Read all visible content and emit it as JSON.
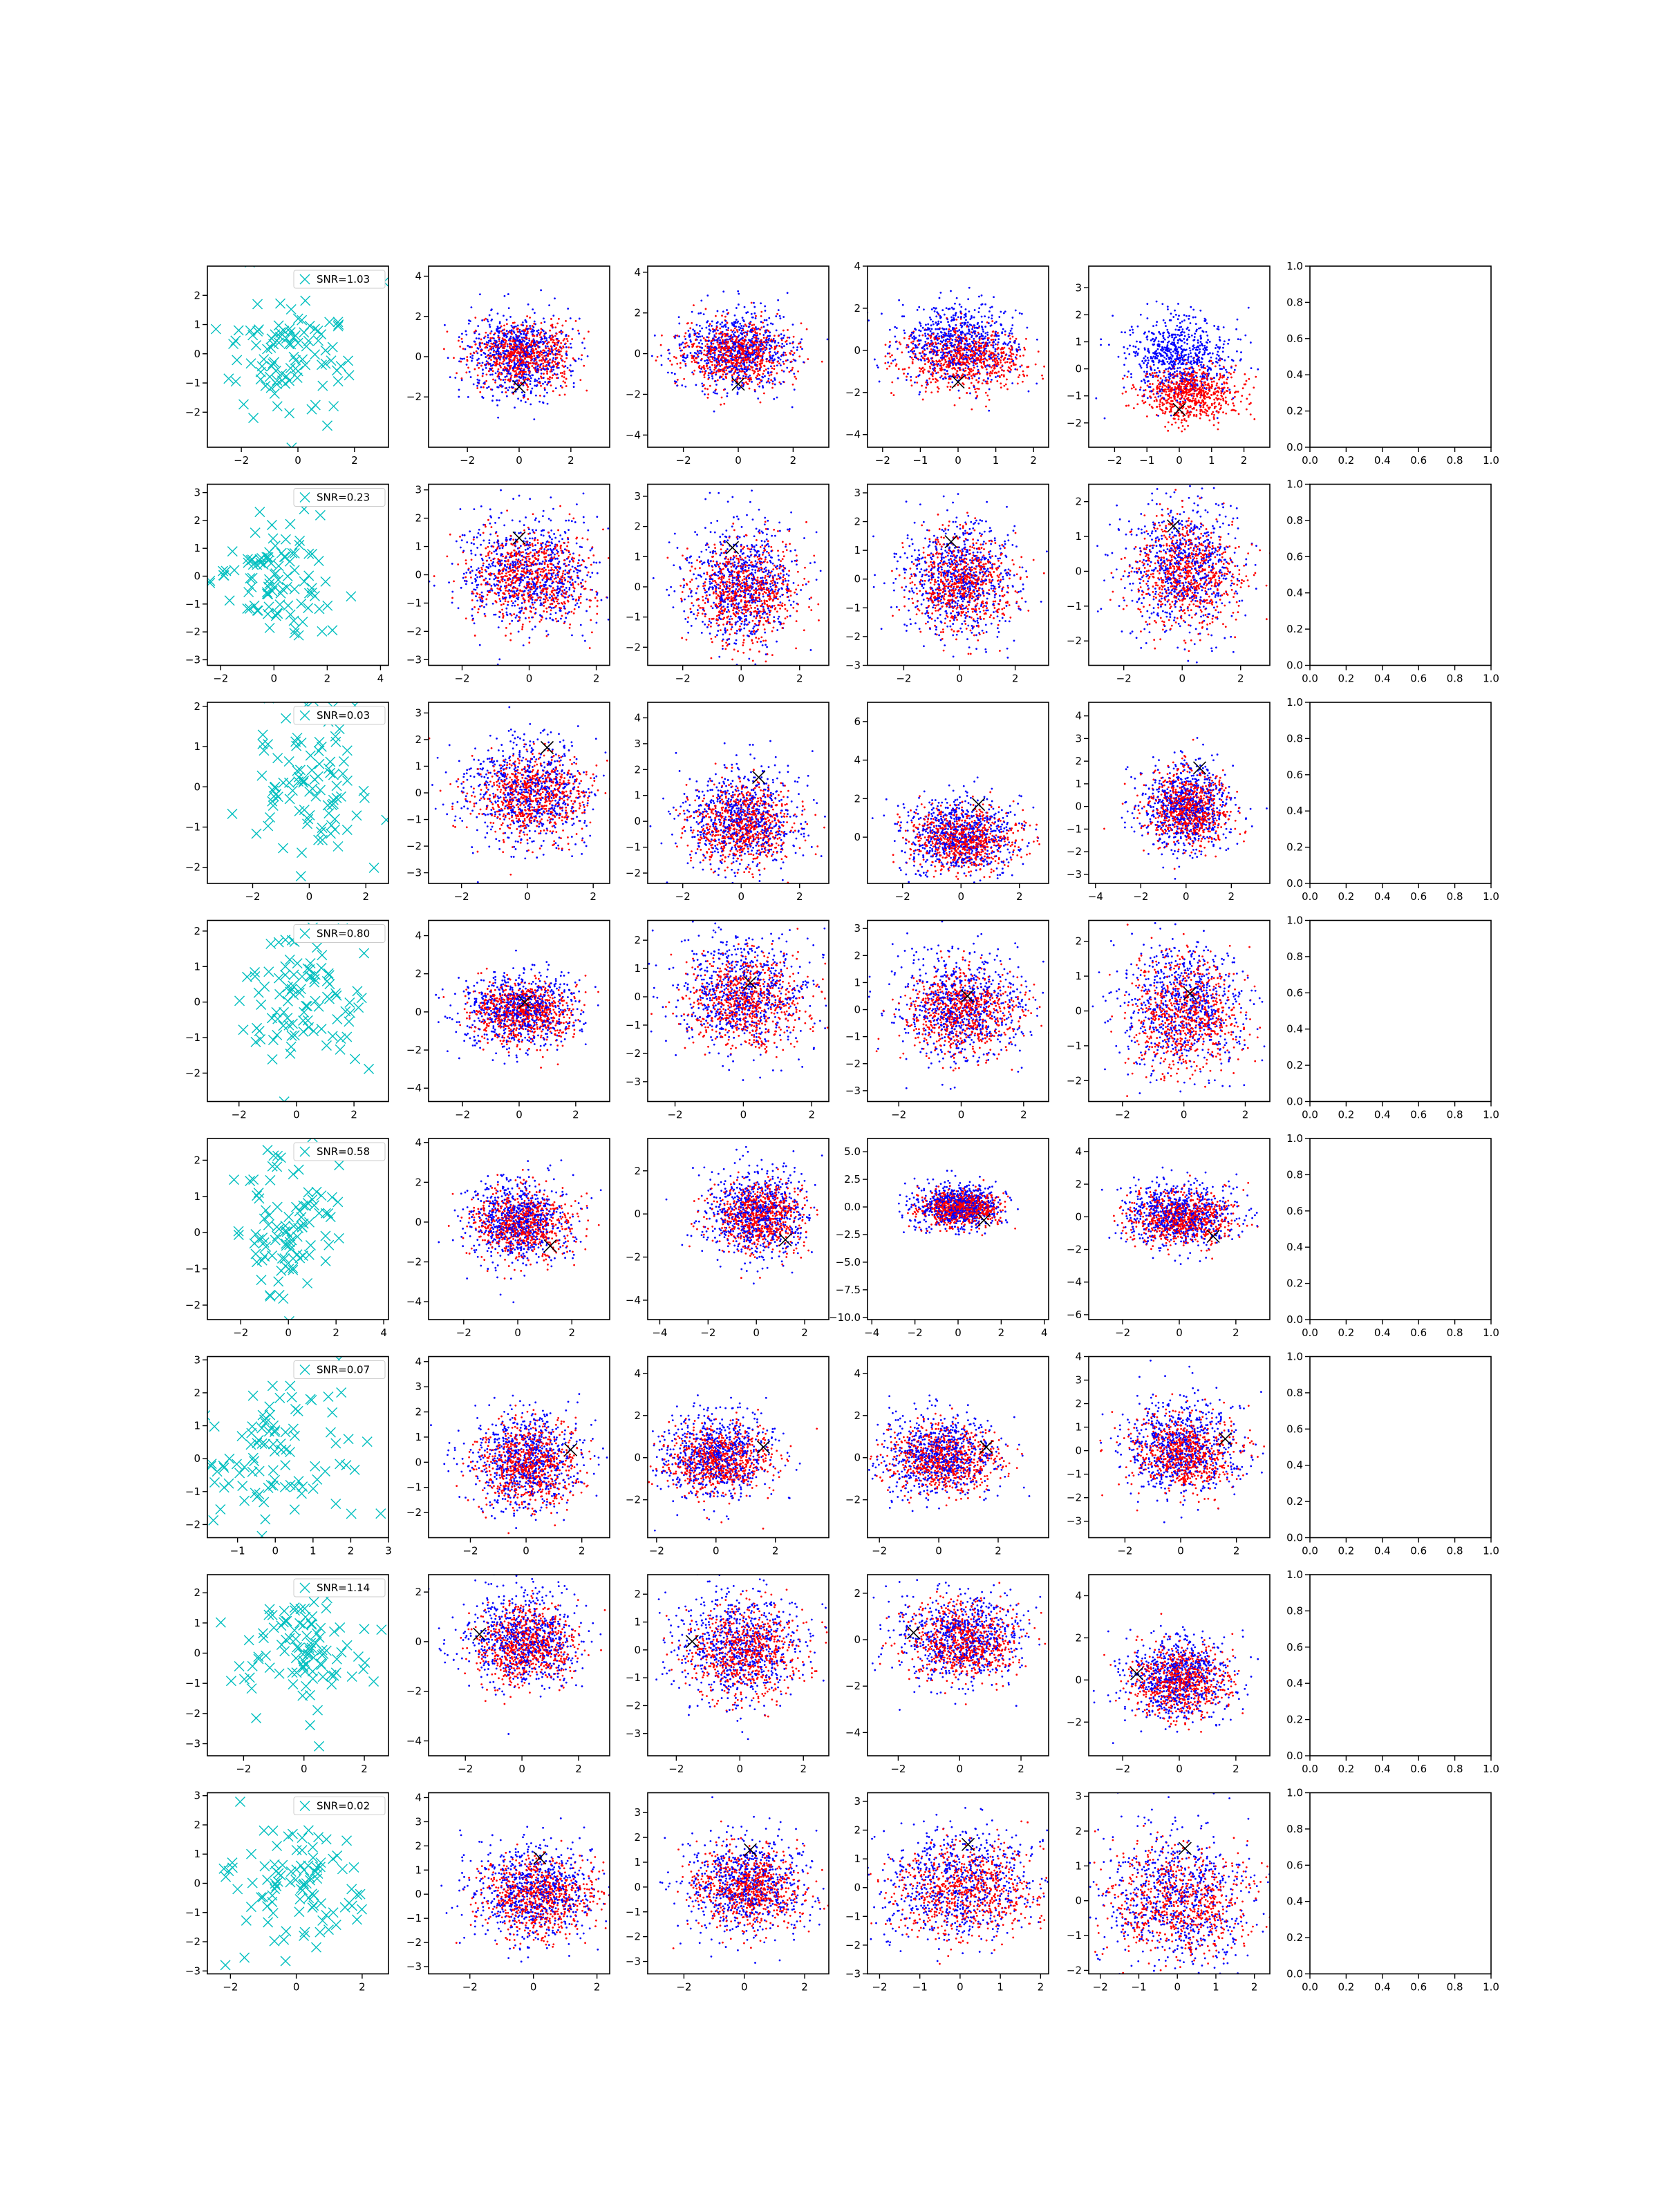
{
  "chart_data": {
    "type": "scatter",
    "layout": {
      "rows": 8,
      "cols": 6
    },
    "colors": {
      "samples": "#00bfbf",
      "class_a": "#0000ff",
      "class_b": "#ff0000",
      "marker": "#000000",
      "frame": "#000000"
    },
    "last_column": {
      "empty": true,
      "xlim": [
        0.0,
        1.0
      ],
      "ylim": [
        0.0,
        1.0
      ],
      "ticks": [
        "0.0",
        "0.2",
        "0.4",
        "0.6",
        "0.8",
        "1.0"
      ]
    },
    "rows": [
      {
        "snr_label": "SNR=1.03",
        "marker": [
          0.0,
          -1.5
        ],
        "panels": [
          {
            "xlim": [
              -3.2,
              3.2
            ],
            "ylim": [
              -3.2,
              3.0
            ],
            "xticks": [
              -2,
              0,
              2
            ],
            "yticks": [
              -2,
              -1,
              0,
              1,
              2
            ]
          },
          {
            "xlim": [
              -3.5,
              3.5
            ],
            "ylim": [
              -4.5,
              4.5
            ],
            "xticks": [
              -2,
              0,
              2
            ],
            "yticks": [
              -2,
              0,
              2,
              4
            ],
            "a": {
              "mx": 0.0,
              "my": 0.1,
              "sx": 1.0,
              "sy": 1.0
            },
            "b": {
              "mx": 0.1,
              "my": 0.1,
              "sx": 1.0,
              "sy": 0.8
            }
          },
          {
            "xlim": [
              -3.3,
              3.3
            ],
            "ylim": [
              -4.6,
              4.3
            ],
            "xticks": [
              -2,
              0,
              2
            ],
            "yticks": [
              -4,
              -2,
              0,
              2,
              4
            ],
            "a": {
              "mx": 0.0,
              "my": 0.2,
              "sx": 1.0,
              "sy": 1.0
            },
            "b": {
              "mx": -0.1,
              "my": -0.1,
              "sx": 1.0,
              "sy": 0.8
            }
          },
          {
            "xlim": [
              -2.4,
              2.4
            ],
            "ylim": [
              -4.6,
              4.0
            ],
            "xticks": [
              -2,
              -1,
              0,
              1,
              2
            ],
            "yticks": [
              -4,
              -2,
              0,
              2,
              4
            ],
            "a": {
              "mx": 0.0,
              "my": 0.3,
              "sx": 0.8,
              "sy": 0.9
            },
            "b": {
              "mx": 0.2,
              "my": -0.4,
              "sx": 0.8,
              "sy": 0.7
            }
          },
          {
            "xlim": [
              -2.8,
              2.8
            ],
            "ylim": [
              -2.9,
              3.8
            ],
            "xticks": [
              -2,
              -1,
              0,
              1,
              2
            ],
            "yticks": [
              -2,
              -1,
              0,
              1,
              2,
              3
            ],
            "a": {
              "mx": 0.0,
              "my": 0.4,
              "sx": 0.8,
              "sy": 0.8
            },
            "b": {
              "mx": 0.4,
              "my": -0.9,
              "sx": 0.7,
              "sy": 0.5
            }
          }
        ]
      },
      {
        "snr_label": "SNR=0.23",
        "marker": [
          -0.3,
          1.3
        ],
        "panels": [
          {
            "xlim": [
              -2.5,
              4.3
            ],
            "ylim": [
              -3.2,
              3.3
            ],
            "xticks": [
              -2,
              0,
              2,
              4
            ],
            "yticks": [
              -3,
              -2,
              -1,
              0,
              1,
              2,
              3
            ]
          },
          {
            "xlim": [
              -3.0,
              2.4
            ],
            "ylim": [
              -3.2,
              3.2
            ],
            "xticks": [
              -2,
              0,
              2
            ],
            "yticks": [
              -3,
              -2,
              -1,
              0,
              1,
              2,
              3
            ]
          },
          {
            "xlim": [
              -3.2,
              3.0
            ],
            "ylim": [
              -2.6,
              3.4
            ],
            "xticks": [
              -2,
              0,
              2
            ],
            "yticks": [
              -2,
              -1,
              0,
              1,
              2,
              3
            ]
          },
          {
            "xlim": [
              -3.3,
              3.2
            ],
            "ylim": [
              -3.0,
              3.3
            ],
            "xticks": [
              -2,
              0,
              2
            ],
            "yticks": [
              -3,
              -2,
              -1,
              0,
              1,
              2,
              3
            ]
          },
          {
            "xlim": [
              -3.2,
              3.0
            ],
            "ylim": [
              -2.7,
              2.5
            ],
            "xticks": [
              -2,
              0,
              2
            ],
            "yticks": [
              -2,
              -1,
              0,
              1,
              2
            ]
          }
        ]
      },
      {
        "snr_label": "SNR=0.03",
        "marker": [
          0.6,
          1.7
        ],
        "panels": [
          {
            "xlim": [
              -3.6,
              2.8
            ],
            "ylim": [
              -2.4,
              2.1
            ],
            "xticks": [
              -2,
              0,
              2
            ],
            "yticks": [
              -2,
              -1,
              0,
              1,
              2
            ]
          },
          {
            "xlim": [
              -3.0,
              2.5
            ],
            "ylim": [
              -3.4,
              3.4
            ],
            "xticks": [
              -2,
              0,
              2
            ],
            "yticks": [
              -3,
              -2,
              -1,
              0,
              1,
              2,
              3
            ]
          },
          {
            "xlim": [
              -3.2,
              3.0
            ],
            "ylim": [
              -2.4,
              4.6
            ],
            "xticks": [
              -2,
              0,
              2
            ],
            "yticks": [
              -2,
              -1,
              0,
              1,
              2,
              3,
              4
            ]
          },
          {
            "xlim": [
              -3.2,
              3.0
            ],
            "ylim": [
              -2.4,
              7.0
            ],
            "xticks": [
              -2,
              0,
              2
            ],
            "yticks": [
              0,
              2,
              4,
              6
            ]
          },
          {
            "xlim": [
              -4.3,
              3.7
            ],
            "ylim": [
              -3.4,
              4.6
            ],
            "xticks": [
              -4,
              -2,
              0,
              2
            ],
            "yticks": [
              -3,
              -2,
              -1,
              0,
              1,
              2,
              3,
              4
            ]
          }
        ]
      },
      {
        "snr_label": "SNR=0.80",
        "marker": [
          0.2,
          0.5
        ],
        "panels": [
          {
            "xlim": [
              -3.1,
              3.2
            ],
            "ylim": [
              -2.8,
              2.3
            ],
            "xticks": [
              -2,
              0,
              2
            ],
            "yticks": [
              -2,
              -1,
              0,
              1,
              2
            ]
          },
          {
            "xlim": [
              -3.2,
              3.2
            ],
            "ylim": [
              -4.7,
              4.8
            ],
            "xticks": [
              -2,
              0,
              2
            ],
            "yticks": [
              -4,
              -2,
              0,
              2,
              4
            ]
          },
          {
            "xlim": [
              -2.8,
              2.5
            ],
            "ylim": [
              -3.7,
              2.7
            ],
            "xticks": [
              -2,
              0,
              2
            ],
            "yticks": [
              -3,
              -2,
              -1,
              0,
              1,
              2
            ]
          },
          {
            "xlim": [
              -3.0,
              2.8
            ],
            "ylim": [
              -3.4,
              3.3
            ],
            "xticks": [
              -2,
              0,
              2
            ],
            "yticks": [
              -3,
              -2,
              -1,
              0,
              1,
              2,
              3
            ]
          },
          {
            "xlim": [
              -3.1,
              2.8
            ],
            "ylim": [
              -2.6,
              2.6
            ],
            "xticks": [
              -2,
              0,
              2
            ],
            "yticks": [
              -2,
              -1,
              0,
              1,
              2
            ]
          }
        ]
      },
      {
        "snr_label": "SNR=0.58",
        "marker": [
          1.2,
          -1.2
        ],
        "panels": [
          {
            "xlim": [
              -3.4,
              4.2
            ],
            "ylim": [
              -2.4,
              2.6
            ],
            "xticks": [
              -2,
              0,
              2,
              4
            ],
            "yticks": [
              -2,
              -1,
              0,
              1,
              2
            ]
          },
          {
            "xlim": [
              -3.3,
              3.4
            ],
            "ylim": [
              -4.9,
              4.2
            ],
            "xticks": [
              -2,
              0,
              2
            ],
            "yticks": [
              -4,
              -2,
              0,
              2,
              4
            ]
          },
          {
            "xlim": [
              -4.5,
              3.0
            ],
            "ylim": [
              -4.9,
              3.5
            ],
            "xticks": [
              -4,
              -2,
              0,
              2
            ],
            "yticks": [
              -4,
              -2,
              0,
              2
            ]
          },
          {
            "xlim": [
              -4.2,
              4.2
            ],
            "ylim": [
              -10.2,
              6.2
            ],
            "xticks": [
              -4,
              -2,
              0,
              2,
              4
            ],
            "yticks": [
              "-10.0",
              "-7.5",
              "-5.0",
              "-2.5",
              "0.0",
              "2.5",
              "5.0"
            ]
          },
          {
            "xlim": [
              -3.2,
              3.2
            ],
            "ylim": [
              -6.3,
              4.8
            ],
            "xticks": [
              -2,
              0,
              2
            ],
            "yticks": [
              -6,
              -4,
              -2,
              0,
              2,
              4
            ]
          }
        ]
      },
      {
        "snr_label": "SNR=0.07",
        "marker": [
          1.6,
          0.5
        ],
        "panels": [
          {
            "xlim": [
              -1.8,
              3.0
            ],
            "ylim": [
              -2.4,
              3.1
            ],
            "xticks": [
              -1,
              0,
              1,
              2,
              3
            ],
            "yticks": [
              -2,
              -1,
              0,
              1,
              2,
              3
            ]
          },
          {
            "xlim": [
              -3.5,
              3.0
            ],
            "ylim": [
              -3.0,
              4.2
            ],
            "xticks": [
              -2,
              0,
              2
            ],
            "yticks": [
              -2,
              -1,
              0,
              1,
              2,
              3,
              4
            ]
          },
          {
            "xlim": [
              -2.3,
              3.8
            ],
            "ylim": [
              -3.8,
              4.8
            ],
            "xticks": [
              -2,
              0,
              2
            ],
            "yticks": [
              -2,
              0,
              2,
              4
            ]
          },
          {
            "xlim": [
              -2.4,
              3.7
            ],
            "ylim": [
              -3.8,
              4.8
            ],
            "xticks": [
              -2,
              0,
              2
            ],
            "yticks": [
              -2,
              0,
              2,
              4
            ]
          },
          {
            "xlim": [
              -3.3,
              3.2
            ],
            "ylim": [
              -3.7,
              4.0
            ],
            "xticks": [
              -2,
              0,
              2
            ],
            "yticks": [
              -3,
              -2,
              -1,
              0,
              1,
              2,
              3,
              4
            ]
          }
        ]
      },
      {
        "snr_label": "SNR=1.14",
        "marker": [
          -1.5,
          0.3
        ],
        "panels": [
          {
            "xlim": [
              -3.2,
              2.8
            ],
            "ylim": [
              -3.4,
              2.6
            ],
            "xticks": [
              -2,
              0,
              2
            ],
            "yticks": [
              -3,
              -2,
              -1,
              0,
              1,
              2
            ]
          },
          {
            "xlim": [
              -3.3,
              3.1
            ],
            "ylim": [
              -4.6,
              2.7
            ],
            "xticks": [
              -2,
              0,
              2
            ],
            "yticks": [
              -4,
              -2,
              0,
              2
            ]
          },
          {
            "xlim": [
              -2.9,
              2.8
            ],
            "ylim": [
              -3.8,
              2.7
            ],
            "xticks": [
              -2,
              0,
              2
            ],
            "yticks": [
              -3,
              -2,
              -1,
              0,
              1,
              2
            ]
          },
          {
            "xlim": [
              -3.0,
              2.9
            ],
            "ylim": [
              -5.0,
              2.8
            ],
            "xticks": [
              -2,
              0,
              2
            ],
            "yticks": [
              -4,
              -2,
              0,
              2
            ]
          },
          {
            "xlim": [
              -3.2,
              3.2
            ],
            "ylim": [
              -3.6,
              5.0
            ],
            "xticks": [
              -2,
              0,
              2
            ],
            "yticks": [
              -2,
              0,
              2,
              4
            ]
          }
        ]
      },
      {
        "snr_label": "SNR=0.02",
        "marker": [
          0.2,
          1.5
        ],
        "panels": [
          {
            "xlim": [
              -2.7,
              2.8
            ],
            "ylim": [
              -3.1,
              3.1
            ],
            "xticks": [
              -2,
              0,
              2
            ],
            "yticks": [
              -3,
              -2,
              -1,
              0,
              1,
              2,
              3
            ]
          },
          {
            "xlim": [
              -3.3,
              2.4
            ],
            "ylim": [
              -3.3,
              4.2
            ],
            "xticks": [
              -2,
              0,
              2
            ],
            "yticks": [
              -3,
              -2,
              -1,
              0,
              1,
              2,
              3,
              4
            ]
          },
          {
            "xlim": [
              -3.2,
              2.8
            ],
            "ylim": [
              -3.5,
              3.8
            ],
            "xticks": [
              -2,
              0,
              2
            ],
            "yticks": [
              -3,
              -2,
              -1,
              0,
              1,
              2,
              3
            ]
          },
          {
            "xlim": [
              -2.3,
              2.2
            ],
            "ylim": [
              -3.0,
              3.3
            ],
            "xticks": [
              -2,
              -1,
              0,
              1,
              2
            ],
            "yticks": [
              -3,
              -2,
              -1,
              0,
              1,
              2,
              3
            ]
          },
          {
            "xlim": [
              -2.3,
              2.4
            ],
            "ylim": [
              -2.1,
              3.1
            ],
            "xticks": [
              -2,
              -1,
              0,
              1,
              2
            ],
            "yticks": [
              -2,
              -1,
              0,
              1,
              2,
              3
            ]
          }
        ]
      }
    ]
  }
}
